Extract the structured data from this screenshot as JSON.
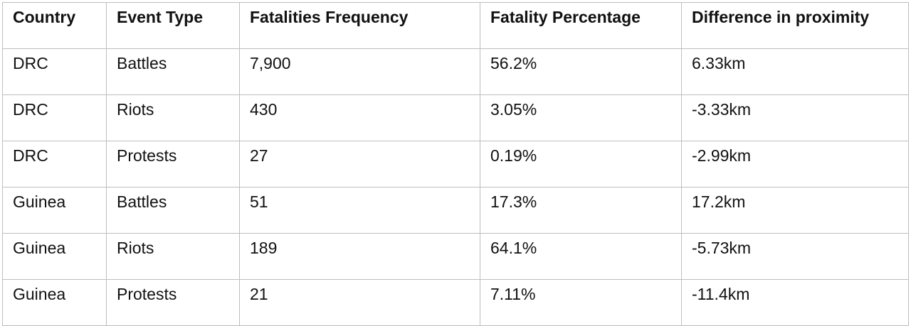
{
  "table": {
    "headers": [
      "Country",
      "Event Type",
      "Fatalities Frequency",
      "Fatality Percentage",
      "Difference in proximity"
    ],
    "rows": [
      [
        "DRC",
        "Battles",
        "7,900",
        "56.2%",
        "6.33km"
      ],
      [
        "DRC",
        "Riots",
        "430",
        "3.05%",
        "-3.33km"
      ],
      [
        "DRC",
        "Protests",
        "27",
        "0.19%",
        "-2.99km"
      ],
      [
        "Guinea",
        "Battles",
        "51",
        "17.3%",
        "17.2km"
      ],
      [
        "Guinea",
        "Riots",
        "189",
        "64.1%",
        "-5.73km"
      ],
      [
        "Guinea",
        "Protests",
        "21",
        "7.11%",
        "-11.4km"
      ]
    ]
  }
}
